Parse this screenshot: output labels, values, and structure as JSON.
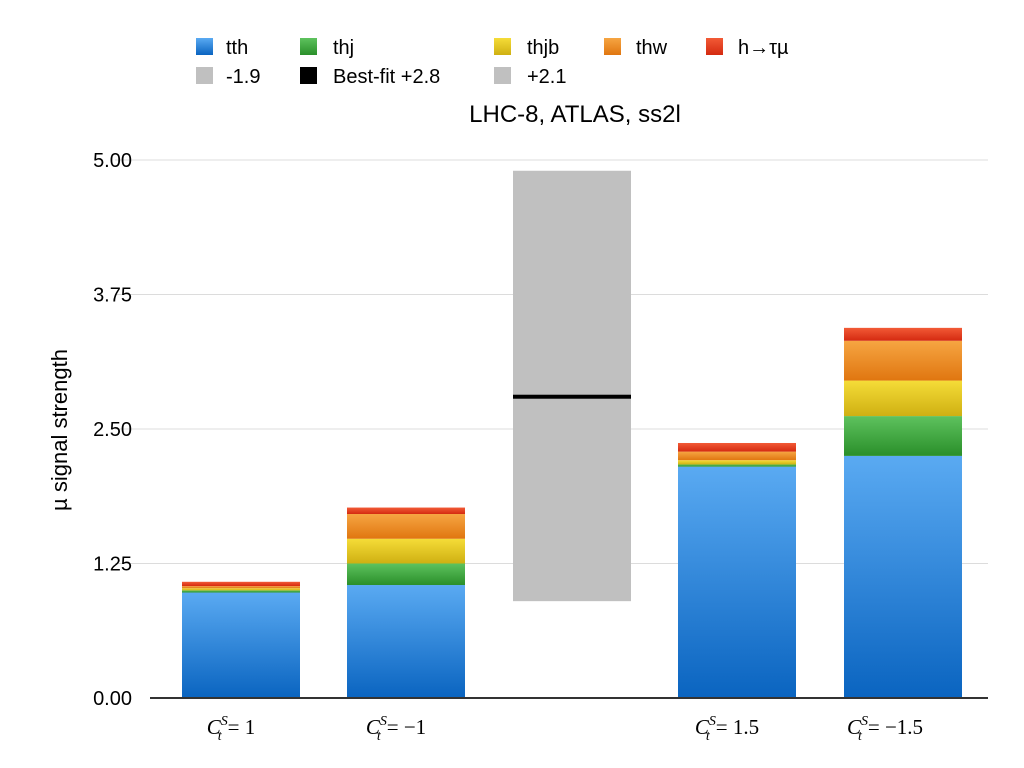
{
  "chart_data": {
    "type": "bar",
    "stacked": true,
    "title": "LHC-8, ATLAS, ss2l",
    "xlabel": "",
    "ylabel": "µ signal strength",
    "ylim": [
      0,
      5
    ],
    "yticks": [
      "0.00",
      "1.25",
      "2.50",
      "3.75",
      "5.00"
    ],
    "ytick_values": [
      0,
      1.25,
      2.5,
      3.75,
      5.0
    ],
    "grid": true,
    "legend_position": "top",
    "categories": [
      {
        "sym": "C",
        "sup": "S",
        "sub": "t",
        "rhs": "= 1"
      },
      {
        "sym": "C",
        "sup": "S",
        "sub": "t",
        "rhs": "= −1"
      },
      {
        "sym": "",
        "sup": "",
        "sub": "",
        "rhs": ""
      },
      {
        "sym": "C",
        "sup": "S",
        "sub": "t",
        "rhs": "= 1.5"
      },
      {
        "sym": "C",
        "sup": "S",
        "sub": "t",
        "rhs": "= −1.5"
      }
    ],
    "series": [
      {
        "name": "tth",
        "color_top": "#5aaaf2",
        "color_bottom": "#0a64c0",
        "values": [
          0.98,
          1.05,
          0,
          2.15,
          2.25
        ]
      },
      {
        "name": "thj",
        "color_top": "#5ec25e",
        "color_bottom": "#2a8f2a",
        "values": [
          0.02,
          0.2,
          0,
          0.02,
          0.37
        ]
      },
      {
        "name": "thjb",
        "color_top": "#f5dc38",
        "color_bottom": "#cfb012",
        "values": [
          0.02,
          0.23,
          0,
          0.04,
          0.33
        ]
      },
      {
        "name": "thw",
        "color_top": "#f6a542",
        "color_bottom": "#e07610",
        "values": [
          0.02,
          0.23,
          0,
          0.08,
          0.37
        ]
      },
      {
        "name": "h→τµ",
        "color_top": "#f25a36",
        "color_bottom": "#d42a10",
        "values": [
          0.04,
          0.06,
          0,
          0.08,
          0.12
        ]
      }
    ],
    "band": {
      "category_index": 2,
      "low_label": "-1.9",
      "best_label": "Best-fit +2.8",
      "high_label": "+2.1",
      "best_fit": 2.8,
      "low": 0.9,
      "high": 4.9,
      "color": "#c0c0c0",
      "line_color": "#000000"
    }
  }
}
